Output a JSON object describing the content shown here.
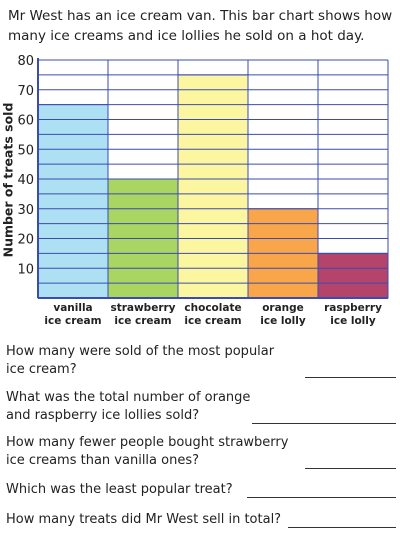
{
  "intro": "Mr West has an ice cream van. This bar chart shows how many ice creams and ice lollies he sold on a hot day.",
  "chart_data": {
    "type": "bar",
    "categories": [
      [
        "vanilla",
        "ice cream"
      ],
      [
        "strawberry",
        "ice cream"
      ],
      [
        "chocolate",
        "ice cream"
      ],
      [
        "orange",
        "ice lolly"
      ],
      [
        "raspberry",
        "ice lolly"
      ]
    ],
    "values": [
      65,
      40,
      75,
      30,
      15
    ],
    "colors": [
      "#aee0f4",
      "#a9d563",
      "#fdf6a1",
      "#f9a64b",
      "#b5446a"
    ],
    "ylabel": "Number of treats sold",
    "ylim": [
      0,
      80
    ],
    "yticks": [
      10,
      20,
      30,
      40,
      50,
      60,
      70,
      80
    ],
    "grid": true,
    "grid_color": "#3b4bb0"
  },
  "questions": [
    {
      "lines": [
        "How many were sold of the most popular",
        "ice cream?"
      ]
    },
    {
      "lines": [
        "What was the total number of orange",
        "and raspberry ice lollies sold?"
      ]
    },
    {
      "lines": [
        "How many fewer people bought strawberry",
        "ice creams than vanilla ones?"
      ]
    },
    {
      "lines": [
        "Which was the least popular treat?"
      ]
    },
    {
      "lines": [
        "How many treats did Mr West sell in total?"
      ]
    }
  ]
}
